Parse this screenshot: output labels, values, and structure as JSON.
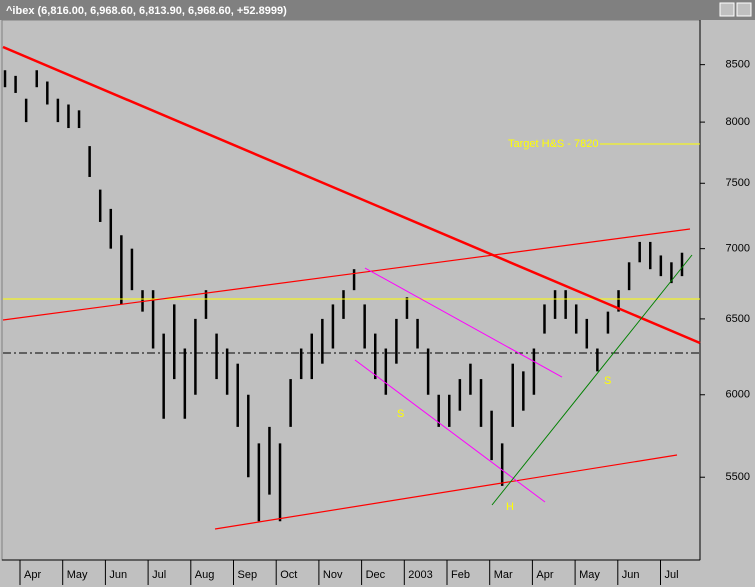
{
  "chart_data": {
    "type": "ohlc",
    "title": "^ibex (6,816.00, 6,968.60, 6,813.90, 6,968.60, +52.8999)",
    "categories": [
      "Apr",
      "May",
      "Jun",
      "Jul",
      "Aug",
      "Sep",
      "Oct",
      "Nov",
      "Dec",
      "2003",
      "Feb",
      "Mar",
      "Apr",
      "May",
      "Jun",
      "Jul"
    ],
    "high": [
      8450,
      8400,
      8200,
      8450,
      8350,
      8200,
      8150,
      8100,
      7800,
      7450,
      7300,
      7100,
      7000,
      6700,
      6700,
      6400,
      6600,
      6300,
      6500,
      6700,
      6400,
      6300,
      6200,
      6000,
      5700,
      5800,
      5700,
      6100,
      6300,
      6400,
      6500,
      6600,
      6700,
      6850,
      6600,
      6400,
      6300,
      6500,
      6650,
      6500,
      6300,
      6000,
      6000,
      6100,
      6200,
      6100,
      5900,
      5700,
      6200,
      6150,
      6300,
      6600,
      6700,
      6700,
      6600,
      6500,
      6300,
      6550,
      6700,
      6900,
      7050,
      7050,
      6950,
      6900,
      6970
    ],
    "low": [
      8300,
      8250,
      8000,
      8300,
      8150,
      8000,
      7950,
      7950,
      7550,
      7200,
      7000,
      6600,
      6700,
      6550,
      6300,
      5850,
      6100,
      5850,
      6000,
      6500,
      6100,
      6000,
      5800,
      5500,
      5250,
      5400,
      5250,
      5800,
      6100,
      6100,
      6200,
      6300,
      6500,
      6700,
      6300,
      6100,
      6000,
      6200,
      6500,
      6300,
      6000,
      5800,
      5800,
      5900,
      6000,
      5800,
      5600,
      5450,
      5800,
      5900,
      6000,
      6400,
      6500,
      6500,
      6400,
      6300,
      6150,
      6400,
      6550,
      6700,
      6900,
      6850,
      6800,
      6750,
      6800
    ],
    "color": "#000000",
    "ylim": [
      5040,
      8910
    ],
    "yticks": [
      5500,
      6000,
      6500,
      7000,
      7500,
      8000,
      8500
    ],
    "log_scale": true,
    "annotations": {
      "target": "Target H&S - 7820",
      "s1": "S",
      "h": "H",
      "s2": "S"
    }
  }
}
